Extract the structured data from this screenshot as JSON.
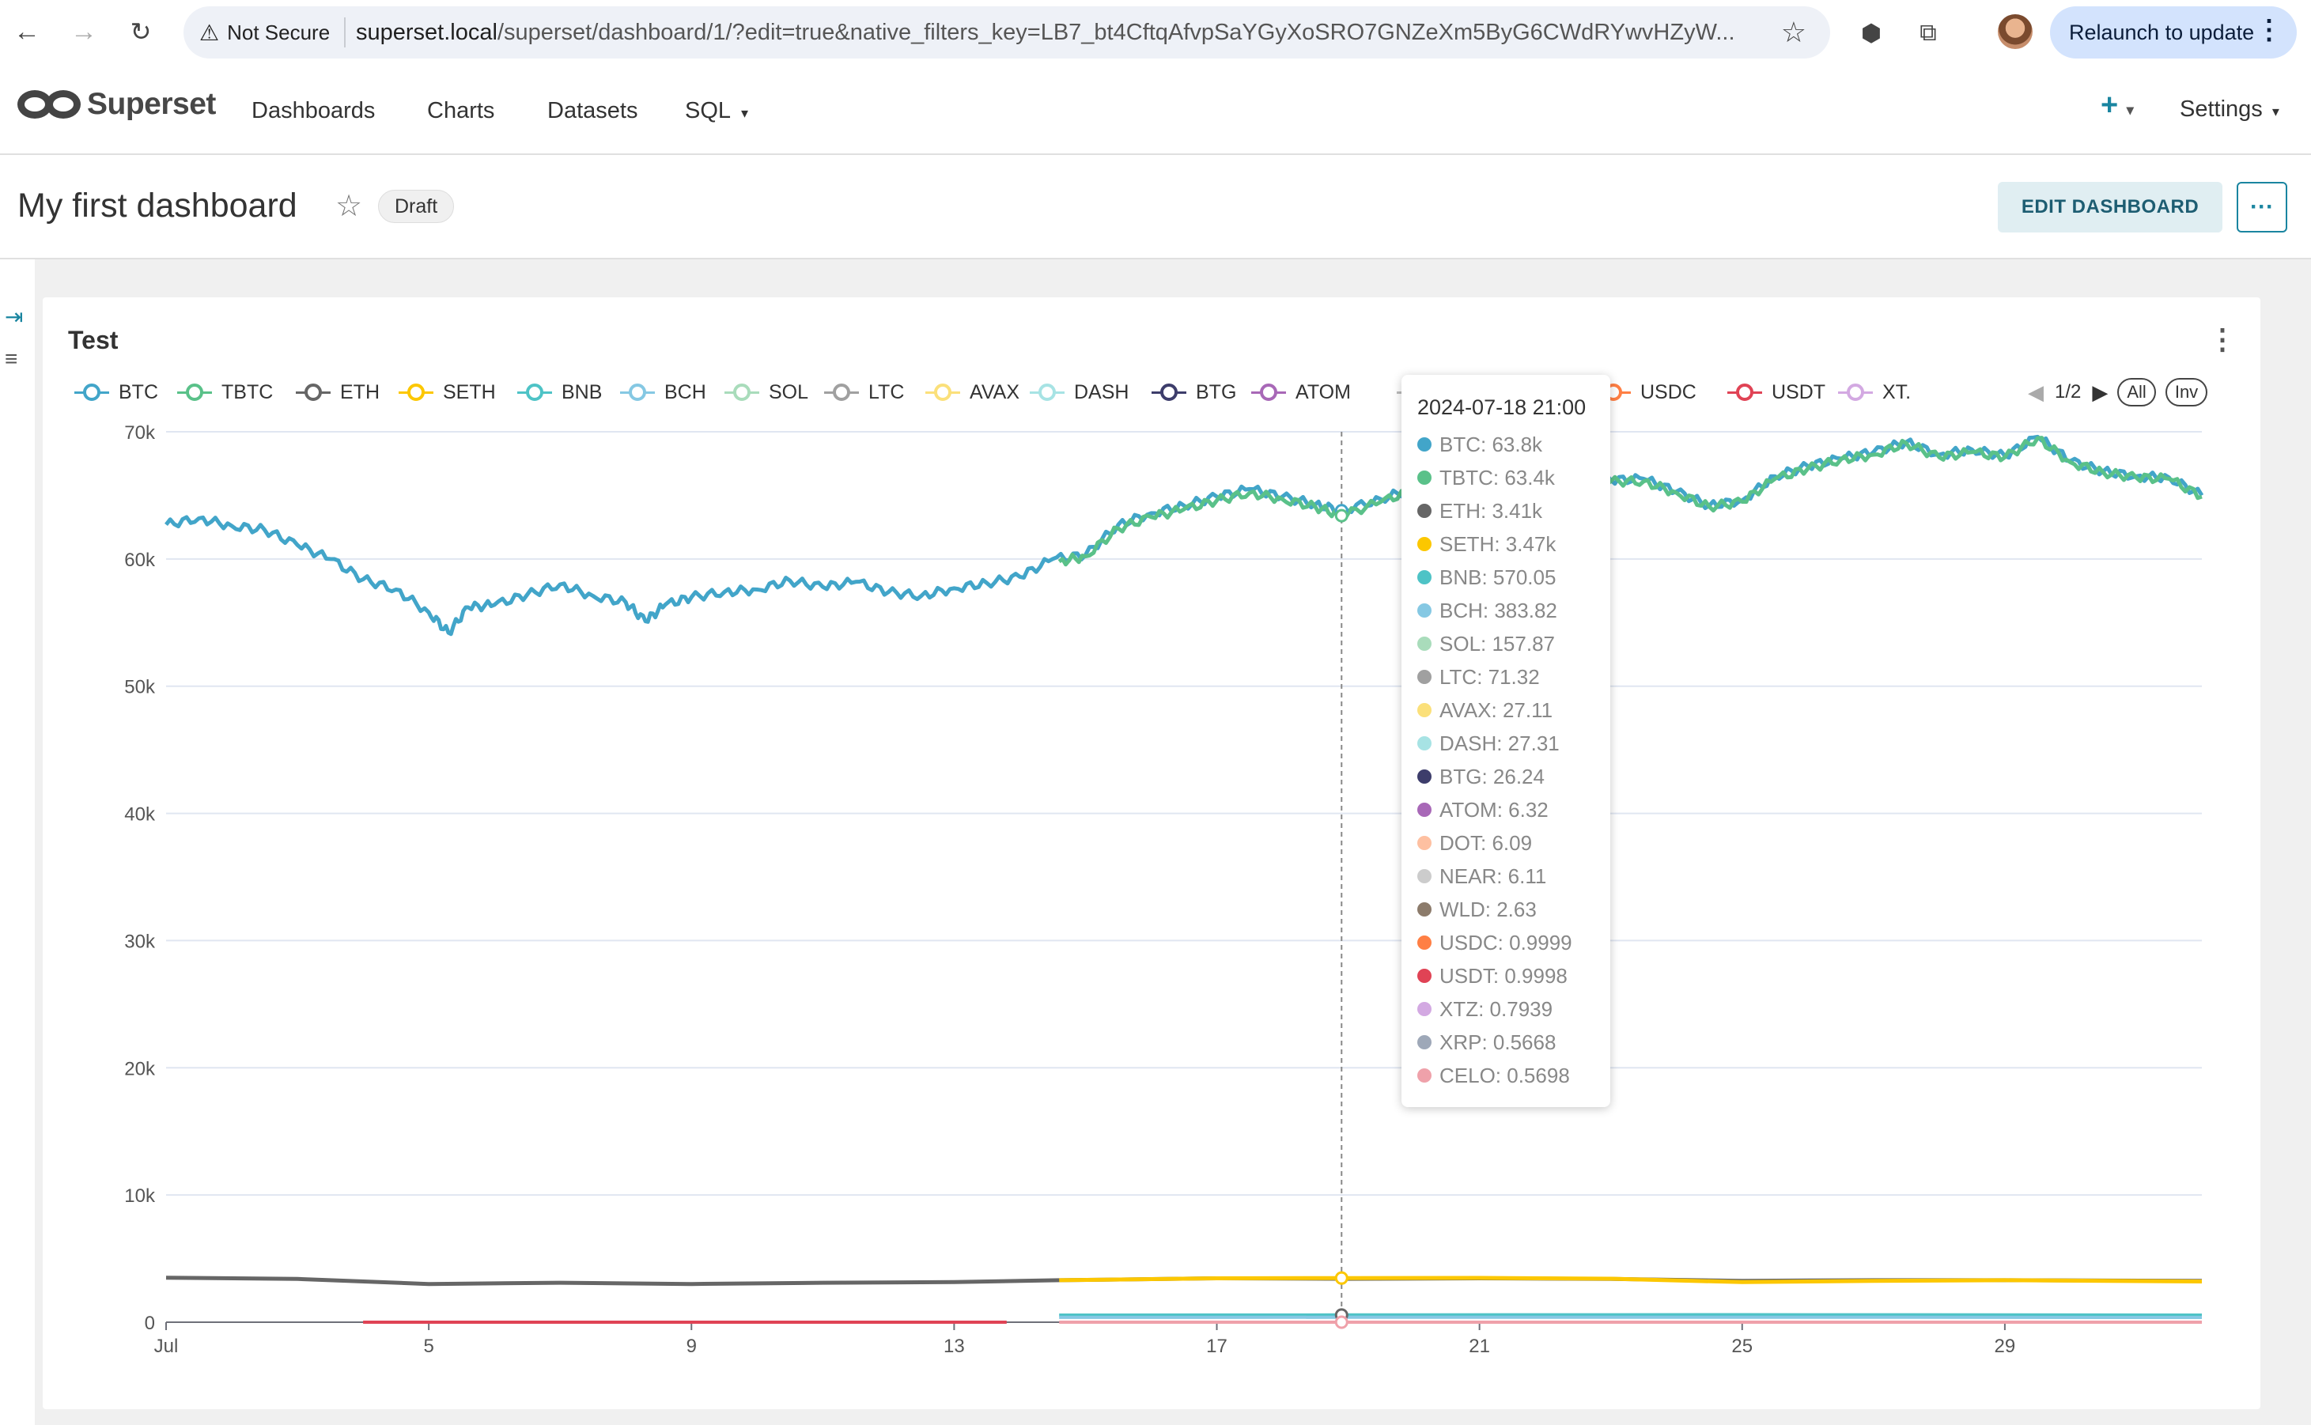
{
  "browser": {
    "not_secure": "Not Secure",
    "url_host": "superset.local",
    "url_path": "/superset/dashboard/1/?edit=true&native_filters_key=LB7_bt4CftqAfvpSaYGyXoSRO7GNZeXm5ByG6CWdRYwvHZyW...",
    "relaunch": "Relaunch to update"
  },
  "nav": {
    "brand": "Superset",
    "menu": [
      "Dashboards",
      "Charts",
      "Datasets",
      "SQL"
    ],
    "plus": "+",
    "settings": "Settings"
  },
  "dashboard": {
    "title": "My first dashboard",
    "status": "Draft",
    "edit_button": "EDIT DASHBOARD",
    "more_button": "···"
  },
  "chart": {
    "title": "Test",
    "pager": "1/2",
    "all_label": "All",
    "inv_label": "Inv",
    "legend": [
      {
        "name": "BTC",
        "color": "#42a5c9"
      },
      {
        "name": "TBTC",
        "color": "#5ac189"
      },
      {
        "name": "ETH",
        "color": "#666666"
      },
      {
        "name": "SETH",
        "color": "#fcc700"
      },
      {
        "name": "BNB",
        "color": "#4ec3c6"
      },
      {
        "name": "BCH",
        "color": "#85c8e3"
      },
      {
        "name": "SOL",
        "color": "#a9dcbb"
      },
      {
        "name": "LTC",
        "color": "#a0a0a0"
      },
      {
        "name": "AVAX",
        "color": "#fbe07a"
      },
      {
        "name": "DASH",
        "color": "#a7e3e4"
      },
      {
        "name": "BTG",
        "color": "#3d3d6b"
      },
      {
        "name": "ATOM",
        "color": "#a868b7"
      },
      {
        "name": "R",
        "color": "#bbbbbb"
      },
      {
        "name": "WLD",
        "color": "#8c7b6b"
      },
      {
        "name": "USDC",
        "color": "#ff7f44"
      },
      {
        "name": "USDT",
        "color": "#e04355"
      },
      {
        "name": "XT.",
        "color": "#d3a9e2"
      }
    ],
    "tooltip": {
      "header": "2024-07-18 21:00",
      "rows": [
        {
          "label": "BTC: 63.8k",
          "color": "#42a5c9"
        },
        {
          "label": "TBTC: 63.4k",
          "color": "#5ac189"
        },
        {
          "label": "ETH: 3.41k",
          "color": "#666666"
        },
        {
          "label": "SETH: 3.47k",
          "color": "#fcc700"
        },
        {
          "label": "BNB: 570.05",
          "color": "#4ec3c6"
        },
        {
          "label": "BCH: 383.82",
          "color": "#85c8e3"
        },
        {
          "label": "SOL: 157.87",
          "color": "#a9dcbb"
        },
        {
          "label": "LTC: 71.32",
          "color": "#a0a0a0"
        },
        {
          "label": "AVAX: 27.11",
          "color": "#fbe07a"
        },
        {
          "label": "DASH: 27.31",
          "color": "#a7e3e4"
        },
        {
          "label": "BTG: 26.24",
          "color": "#3d3d6b"
        },
        {
          "label": "ATOM: 6.32",
          "color": "#a868b7"
        },
        {
          "label": "DOT: 6.09",
          "color": "#fec0a1"
        },
        {
          "label": "NEAR: 6.11",
          "color": "#cccccc"
        },
        {
          "label": "WLD: 2.63",
          "color": "#8c7b6b"
        },
        {
          "label": "USDC: 0.9999",
          "color": "#ff7f44"
        },
        {
          "label": "USDT: 0.9998",
          "color": "#e04355"
        },
        {
          "label": "XTZ: 0.7939",
          "color": "#d3a9e2"
        },
        {
          "label": "XRP: 0.5668",
          "color": "#9ea8b8"
        },
        {
          "label": "CELO: 0.5698",
          "color": "#efa1aa"
        }
      ]
    }
  },
  "chart_data": {
    "type": "line",
    "title": "Test",
    "xlabel": "",
    "ylabel": "",
    "x_ticks": [
      "Jul",
      "5",
      "9",
      "13",
      "17",
      "21",
      "25",
      "29"
    ],
    "x_tick_days": [
      1,
      5,
      9,
      13,
      17,
      21,
      25,
      29
    ],
    "xlim_days": [
      1,
      32
    ],
    "y_ticks": [
      "0",
      "10k",
      "20k",
      "30k",
      "40k",
      "50k",
      "60k",
      "70k"
    ],
    "ylim": [
      0,
      70000
    ],
    "grid": true,
    "legend_position": "top",
    "hover_day": 18.9,
    "series": [
      {
        "name": "BTC",
        "color": "#42a5c9",
        "x": [
          1,
          1.5,
          2,
          2.5,
          3,
          3.5,
          4,
          4.5,
          5,
          5.3,
          5.6,
          6,
          6.5,
          7,
          7.5,
          8,
          8.3,
          8.6,
          9,
          9.5,
          10,
          10.5,
          11,
          11.5,
          12,
          12.5,
          13,
          13.5,
          14,
          14.5,
          15,
          15.5,
          16,
          16.5,
          17,
          17.5,
          18,
          18.5,
          18.9,
          19.5,
          20,
          20.5,
          21,
          21.5,
          22,
          22.5,
          23,
          23.5,
          24,
          24.5,
          25,
          25.5,
          26,
          26.5,
          27,
          27.5,
          28,
          28.5,
          29,
          29.5,
          30,
          30.5,
          31,
          31.5,
          32
        ],
        "y": [
          62700,
          63200,
          62600,
          62300,
          61100,
          60000,
          58400,
          57600,
          55800,
          54200,
          56200,
          56400,
          57200,
          58000,
          57100,
          56600,
          55100,
          56400,
          57000,
          57400,
          57600,
          58300,
          57800,
          58200,
          57400,
          57100,
          57700,
          58100,
          58600,
          60000,
          60300,
          62700,
          63600,
          64200,
          64900,
          65500,
          64900,
          64300,
          63800,
          64700,
          65600,
          67200,
          67400,
          67000,
          66700,
          66800,
          66200,
          66300,
          65300,
          64200,
          64600,
          66500,
          67300,
          67900,
          68400,
          69200,
          68200,
          68600,
          68100,
          69600,
          67700,
          66900,
          66500,
          66400,
          65000
        ]
      },
      {
        "name": "TBTC",
        "color": "#5ac189",
        "x": [
          14.6,
          15,
          15.5,
          16,
          16.5,
          17,
          17.5,
          18,
          18.5,
          18.9,
          19.5,
          20,
          20.5,
          21,
          21.5,
          22,
          22.5,
          23,
          23.5,
          24,
          24.5,
          25,
          25.5,
          26,
          26.5,
          27,
          27.5,
          28,
          28.5,
          29,
          29.5,
          30,
          30.5,
          31,
          31.5,
          32
        ],
        "y": [
          59800,
          60200,
          62400,
          63300,
          63900,
          64600,
          65200,
          64700,
          64100,
          63400,
          64500,
          65400,
          67100,
          67200,
          66900,
          66600,
          66700,
          66100,
          66100,
          65200,
          64100,
          64500,
          66300,
          67100,
          67800,
          68200,
          69100,
          68000,
          68400,
          68000,
          69500,
          67600,
          66800,
          66400,
          66300,
          64900
        ]
      },
      {
        "name": "ETH",
        "color": "#666666",
        "x": [
          1,
          3,
          5,
          7,
          9,
          11,
          13,
          14.6,
          17,
          19,
          21,
          23,
          25,
          27,
          29,
          32
        ],
        "y": [
          3500,
          3400,
          3000,
          3100,
          3000,
          3100,
          3150,
          3300,
          3450,
          3410,
          3450,
          3400,
          3250,
          3300,
          3300,
          3250
        ]
      },
      {
        "name": "SETH",
        "color": "#fcc700",
        "x": [
          14.6,
          17,
          18.9,
          21,
          23,
          25,
          27,
          29,
          32
        ],
        "y": [
          3300,
          3450,
          3470,
          3480,
          3420,
          3150,
          3250,
          3300,
          3200
        ]
      },
      {
        "name": "BNB",
        "color": "#4ec3c6",
        "x": [
          14.6,
          18.9,
          25,
          32
        ],
        "y": [
          560,
          570,
          590,
          560
        ]
      },
      {
        "name": "BCH",
        "color": "#85c8e3",
        "x": [
          14.6,
          18.9,
          25,
          32
        ],
        "y": [
          380,
          384,
          390,
          370
        ]
      },
      {
        "name": "USDT",
        "color": "#e04355",
        "x": [
          4,
          13.8
        ],
        "y": [
          1,
          1
        ]
      },
      {
        "name": "CELO",
        "color": "#efa1aa",
        "x": [
          14.6,
          32
        ],
        "y": [
          0.6,
          0.6
        ]
      }
    ]
  }
}
